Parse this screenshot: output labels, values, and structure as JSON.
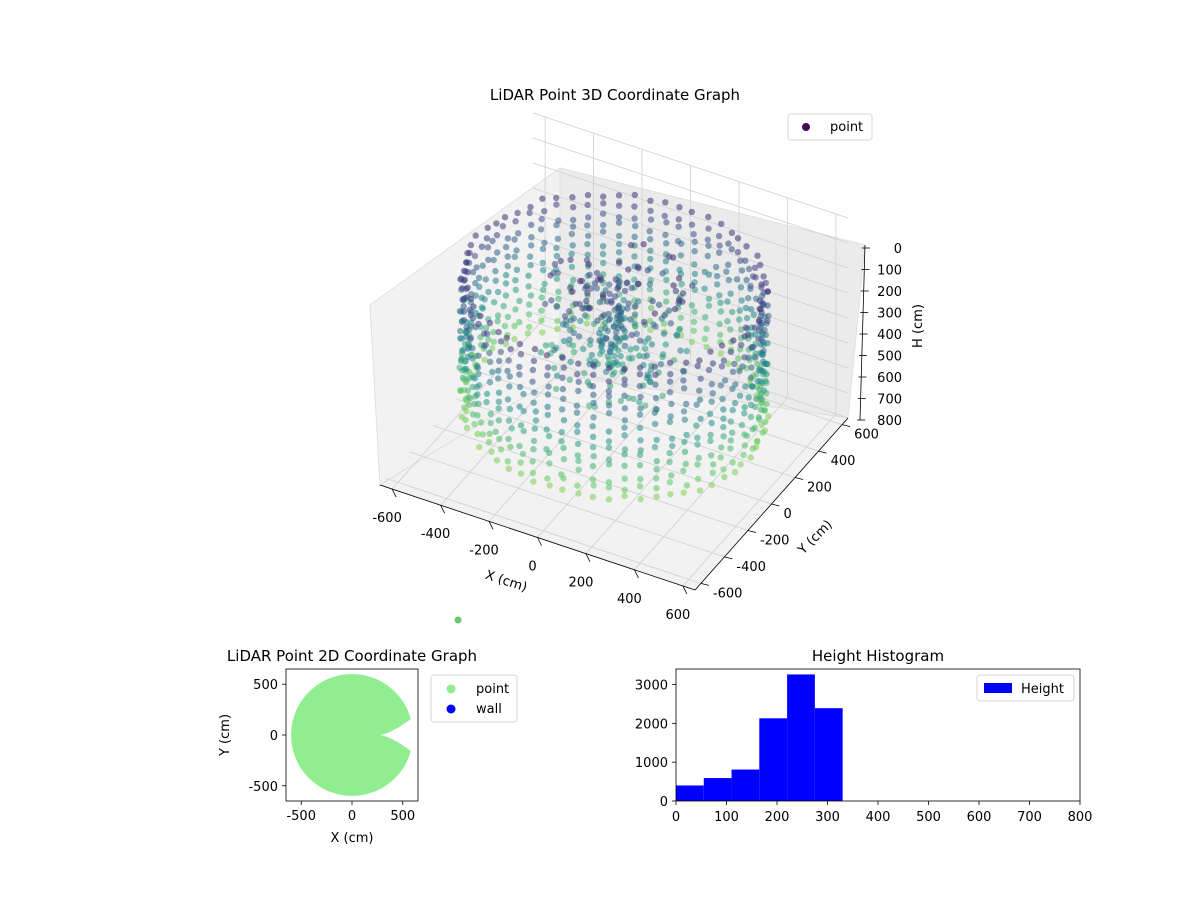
{
  "chart_data": [
    {
      "type": "scatter",
      "projection": "3d",
      "title": "LiDAR Point 3D Coordinate Graph",
      "xlabel": "X (cm)",
      "ylabel": "Y (cm)",
      "zlabel": "H (cm)",
      "xlim": [
        -650,
        650
      ],
      "ylim": [
        -650,
        650
      ],
      "zlim": [
        800,
        0
      ],
      "xticks": [
        -600,
        -400,
        -200,
        0,
        200,
        400,
        600
      ],
      "yticks": [
        -600,
        -400,
        -200,
        0,
        200,
        400,
        600
      ],
      "zticks": [
        0,
        100,
        200,
        300,
        400,
        500,
        600,
        700,
        800
      ],
      "legend": {
        "position": "top-right",
        "entries": [
          "point"
        ]
      },
      "colormap": "viridis",
      "grid": true,
      "series": [
        {
          "name": "point",
          "description_of_shape": "ring-shaped wall of points around radius ~560 cm spanning heights ~100-650 cm, with a central cluster near the origin",
          "wall_radius": 560,
          "wall_height_range": [
            120,
            640
          ],
          "center_cluster_height_range": [
            100,
            500
          ]
        }
      ]
    },
    {
      "type": "scatter",
      "title": "LiDAR Point 2D Coordinate Graph",
      "xlabel": "X (cm)",
      "ylabel": "Y (cm)",
      "xlim": [
        -650,
        650
      ],
      "ylim": [
        -650,
        650
      ],
      "xticks": [
        -500,
        0,
        500
      ],
      "yticks": [
        -500,
        0,
        500
      ],
      "legend": {
        "position": "right-outside",
        "entries": [
          "point",
          "wall"
        ]
      },
      "series": [
        {
          "name": "point",
          "color": "#90ee90",
          "shape": "filled disk radius ~600 cm with a notch on the right around Y≈0"
        },
        {
          "name": "wall",
          "color": "#0000ff",
          "count": 0
        }
      ]
    },
    {
      "type": "bar",
      "subtype": "histogram",
      "title": "Height Histogram",
      "xlim": [
        0,
        800
      ],
      "ylim": [
        0,
        3400
      ],
      "xticks": [
        0,
        100,
        200,
        300,
        400,
        500,
        600,
        700,
        800
      ],
      "yticks": [
        0,
        1000,
        2000,
        3000
      ],
      "legend": {
        "position": "top-right",
        "entries": [
          "Height"
        ]
      },
      "series": [
        {
          "name": "Height",
          "color": "#0000ff",
          "bin_edges": [
            0,
            55,
            110,
            165,
            220,
            275,
            330
          ],
          "values": [
            400,
            590,
            810,
            2130,
            3260,
            2390
          ]
        }
      ]
    }
  ],
  "colors": {
    "axis": "#000000",
    "grid": "#d0d0d0",
    "pane": "#f2f2f2",
    "scatter2d": "#90ee90",
    "wall": "#0000ff",
    "histogram": "#0000ff",
    "stray_point": "#6cc46c"
  }
}
